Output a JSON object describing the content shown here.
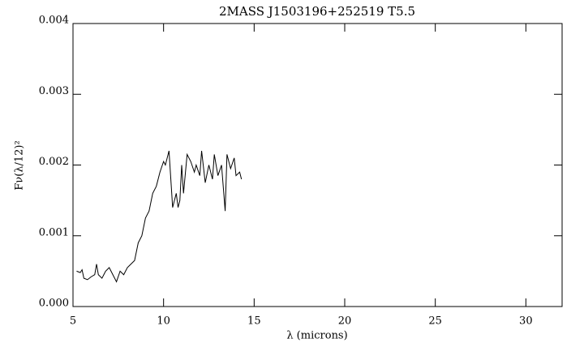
{
  "chart_data": {
    "type": "line",
    "title": "2MASS J1503196+252519 T5.5",
    "x_label": "λ (microns)",
    "y_label": "Fν(λ/12)²",
    "series": [
      {
        "color": "#000000",
        "x": [
          5.2,
          5.4,
          5.5,
          5.6,
          5.8,
          6.0,
          6.2,
          6.3,
          6.4,
          6.6,
          6.8,
          7.0,
          7.2,
          7.4,
          7.6,
          7.8,
          8.0,
          8.2,
          8.4,
          8.6,
          8.8,
          9.0,
          9.2,
          9.4,
          9.6,
          9.8,
          10.0,
          10.1,
          10.3,
          10.4,
          10.5,
          10.7,
          10.8,
          10.9,
          11.0,
          11.1,
          11.3,
          11.5,
          11.7,
          11.8,
          12.0,
          12.1,
          12.3,
          12.5,
          12.7,
          12.8,
          13.0,
          13.2,
          13.4,
          13.5,
          13.7,
          13.9,
          14.0,
          14.2,
          14.3
        ],
        "values": [
          0.0005,
          0.00048,
          0.00052,
          0.0004,
          0.00038,
          0.00042,
          0.00045,
          0.0006,
          0.00045,
          0.0004,
          0.0005,
          0.00055,
          0.00045,
          0.00035,
          0.0005,
          0.00045,
          0.00055,
          0.0006,
          0.00065,
          0.0009,
          0.001,
          0.00125,
          0.00135,
          0.0016,
          0.0017,
          0.0019,
          0.00205,
          0.002,
          0.0022,
          0.0018,
          0.0014,
          0.0016,
          0.0014,
          0.0015,
          0.002,
          0.0016,
          0.00215,
          0.00205,
          0.0019,
          0.002,
          0.00185,
          0.0022,
          0.00175,
          0.002,
          0.0018,
          0.00215,
          0.00185,
          0.002,
          0.00135,
          0.00215,
          0.00195,
          0.0021,
          0.00185,
          0.0019,
          0.0018
        ]
      }
    ],
    "xlim": [
      5,
      32
    ],
    "xticks": [
      5,
      10,
      15,
      20,
      25,
      30
    ],
    "ylim": [
      0,
      0.004
    ],
    "yticks": [
      {
        "value": 0,
        "label": "0.000"
      },
      {
        "value": 0.001,
        "label": "0.001"
      },
      {
        "value": 0.002,
        "label": "0.002"
      },
      {
        "value": 0.003,
        "label": "0.003"
      },
      {
        "value": 0.004,
        "label": "0.004"
      }
    ]
  }
}
